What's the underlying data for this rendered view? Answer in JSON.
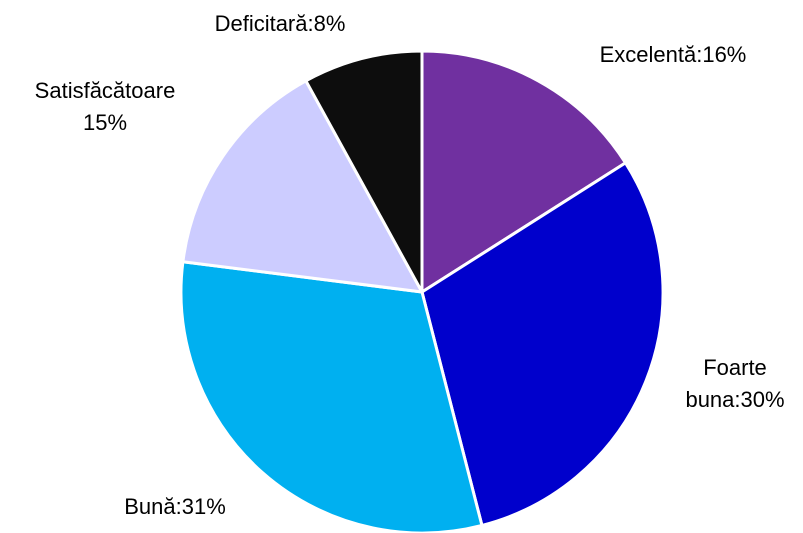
{
  "chart_data": {
    "type": "pie",
    "values": [
      16,
      30,
      31,
      15,
      8
    ],
    "value_labels": [
      [
        "Excelentă:16%"
      ],
      [
        "Foarte",
        "buna:30%"
      ],
      [
        "Bună:31%"
      ],
      [
        "Satisfăcătoare",
        "15%"
      ],
      [
        "Deficitară:8%"
      ]
    ],
    "colors": [
      "#7030a0",
      "#0000cc",
      "#00b0f0",
      "#ccccff",
      "#0d0d0d"
    ]
  }
}
